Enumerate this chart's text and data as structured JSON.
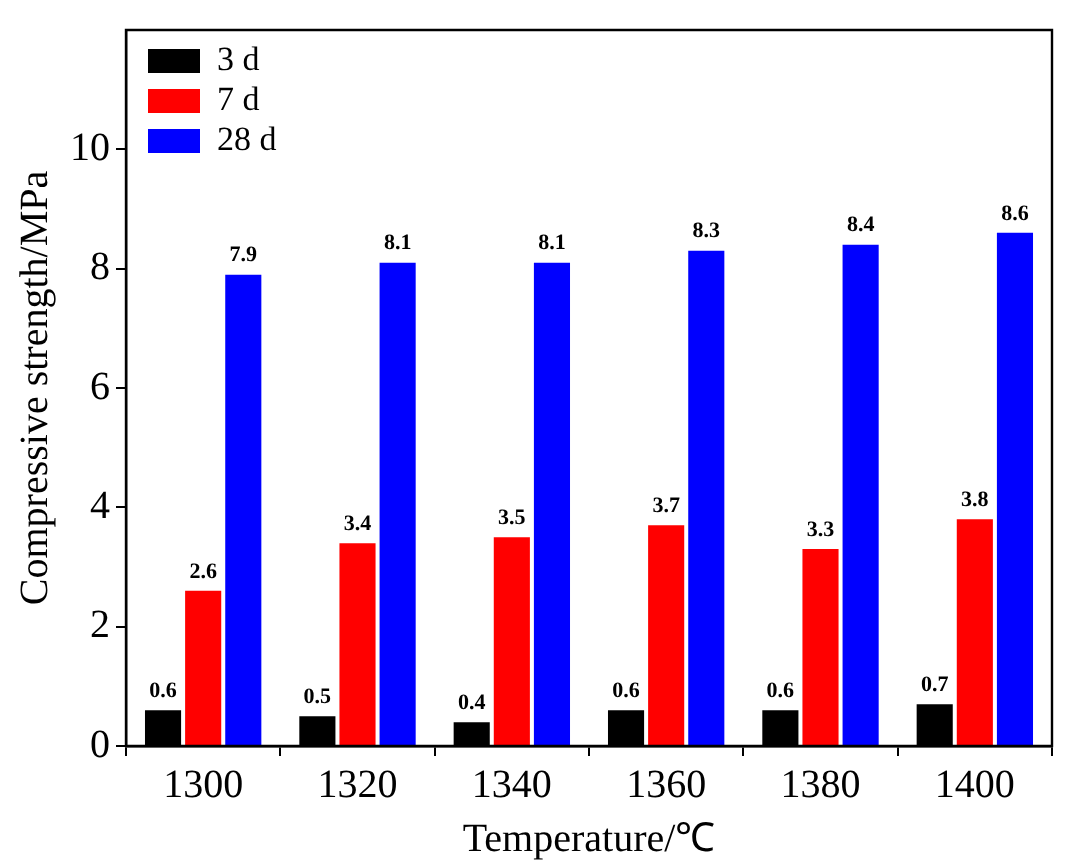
{
  "chart_data": {
    "type": "bar",
    "xlabel": "Temperature/℃",
    "ylabel": "Compressive strength/MPa",
    "categories": [
      "1300",
      "1320",
      "1340",
      "1360",
      "1380",
      "1400"
    ],
    "series": [
      {
        "name": "3 d",
        "color": "#000000",
        "values": [
          0.6,
          0.5,
          0.4,
          0.6,
          0.6,
          0.7
        ]
      },
      {
        "name": "7 d",
        "color": "#ff0000",
        "values": [
          2.6,
          3.4,
          3.5,
          3.7,
          3.3,
          3.8
        ]
      },
      {
        "name": "28 d",
        "color": "#0000ff",
        "values": [
          7.9,
          8.1,
          8.1,
          8.3,
          8.4,
          8.6
        ]
      }
    ],
    "ylim": [
      0,
      12
    ],
    "yticks": [
      0,
      2,
      4,
      6,
      8,
      10
    ],
    "grid": false,
    "legend": "top left",
    "data_labels": true
  }
}
